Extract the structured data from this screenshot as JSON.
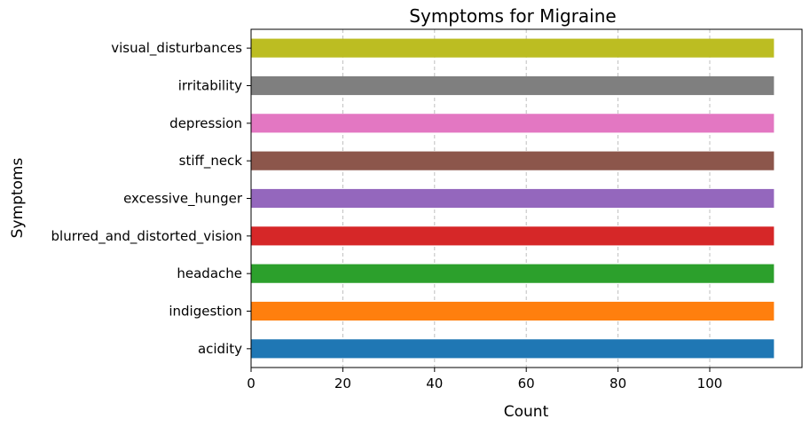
{
  "chart_data": {
    "type": "bar",
    "orientation": "horizontal",
    "title": "Symptoms for Migraine",
    "xlabel": "Count",
    "ylabel": "Symptoms",
    "xlim": [
      0,
      120
    ],
    "xticks": [
      0,
      20,
      40,
      60,
      80,
      100
    ],
    "grid": "x-dashed",
    "categories": [
      "acidity",
      "indigestion",
      "headache",
      "blurred_and_distorted_vision",
      "excessive_hunger",
      "stiff_neck",
      "depression",
      "irritability",
      "visual_disturbances"
    ],
    "values": [
      114,
      114,
      114,
      114,
      114,
      114,
      114,
      114,
      114
    ],
    "colors": [
      "#1f77b4",
      "#ff7f0e",
      "#2ca02c",
      "#d62728",
      "#9467bd",
      "#8c564b",
      "#e377c2",
      "#7f7f7f",
      "#bcbd22"
    ]
  }
}
